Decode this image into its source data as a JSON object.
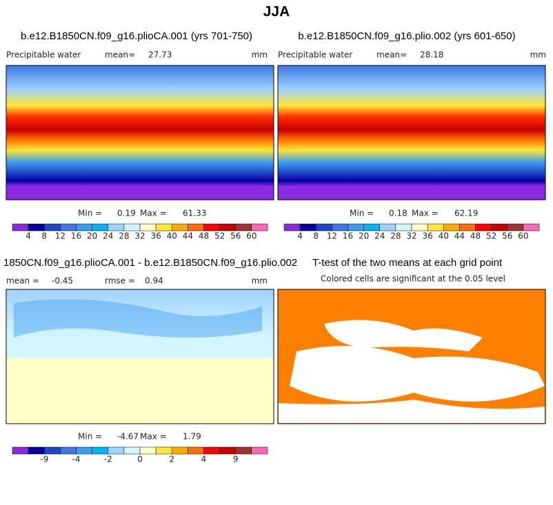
{
  "title": "JJA",
  "colorbar_colors": [
    "#8a2be2",
    "#0000a0",
    "#1e46c8",
    "#3c78e6",
    "#3c9cf0",
    "#00b4f0",
    "#a0d2ff",
    "#d2f5ff",
    "#ffffc8",
    "#ffe632",
    "#ffaa00",
    "#ff6e00",
    "#ff0000",
    "#c80000",
    "#a03232",
    "#ff69b4"
  ],
  "panels": [
    {
      "title": "b.e12.B1850CN.f09_g16.plioCA.001 (yrs 701-750)",
      "variable": "Precipitable water",
      "mean_label": "mean=",
      "mean": 27.73,
      "units": "mm",
      "min_label": "Min =",
      "min": 0.19,
      "max_label": "Max =",
      "max": 61.33,
      "colorbar_levels": [
        4,
        8,
        12,
        16,
        20,
        24,
        28,
        32,
        36,
        40,
        44,
        48,
        52,
        56,
        60
      ]
    },
    {
      "title": "b.e12.B1850CN.f09_g16.plio.002 (yrs 601-650)",
      "variable": "Precipitable water",
      "mean_label": "mean=",
      "mean": 28.18,
      "units": "mm",
      "min_label": "Min =",
      "min": 0.18,
      "max_label": "Max =",
      "max": 62.19,
      "colorbar_levels": [
        4,
        8,
        12,
        16,
        20,
        24,
        28,
        32,
        36,
        40,
        44,
        48,
        52,
        56,
        60
      ]
    },
    {
      "title": "1850CN.f09_g16.plioCA.001 - b.e12.B1850CN.f09_g16.plio.002",
      "mean_label": "mean =",
      "mean": -0.45,
      "rmse_label": "rmse =",
      "rmse": 0.94,
      "units": "mm",
      "min_label": "Min =",
      "min": -4.67,
      "max_label": "Max =",
      "max": 1.79,
      "colorbar_levels": [
        null,
        -9,
        null,
        -4,
        null,
        -2,
        null,
        0,
        null,
        2,
        null,
        4,
        null,
        9,
        null
      ]
    },
    {
      "title": "T-test of the two means at each grid point",
      "subtitle": "Colored cells are significant at the 0.05 level",
      "color": "#ff7f00"
    }
  ]
}
